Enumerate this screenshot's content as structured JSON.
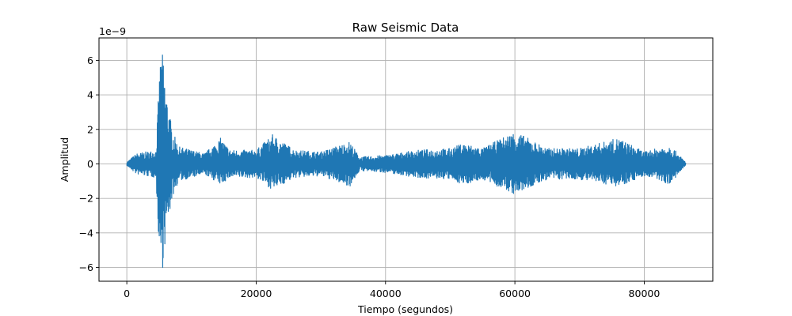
{
  "chart_data": {
    "type": "line",
    "title": "Raw Seismic Data",
    "xlabel": "Tiempo (segundos)",
    "ylabel": "Amplitud",
    "y_scale_label": "1e−9",
    "xlim": [
      -4300,
      90600
    ],
    "ylim": [
      -6.8,
      7.3
    ],
    "x_ticks": [
      0,
      20000,
      40000,
      60000,
      80000
    ],
    "x_tick_labels": [
      "0",
      "20000",
      "40000",
      "60000",
      "80000"
    ],
    "y_ticks": [
      -6,
      -4,
      -2,
      0,
      2,
      4,
      6
    ],
    "y_tick_labels": [
      "−6",
      "−4",
      "−2",
      "0",
      "2",
      "4",
      "6"
    ],
    "grid": true,
    "line_color": "#1f77b4",
    "series": [
      {
        "x": [
          0,
          1500,
          3000,
          4500,
          5000,
          5300,
          5600,
          6000,
          7000,
          8000,
          10000,
          12000,
          14500,
          16000,
          20000,
          22500,
          26000,
          30000,
          34500,
          36000,
          40000,
          45000,
          50000,
          52000,
          55000,
          60000,
          65000,
          70000,
          76000,
          80000,
          82000,
          84000,
          86400
        ],
        "envelope_upper": [
          0.1,
          0.6,
          0.7,
          0.8,
          4.8,
          6.8,
          6.2,
          4.5,
          2.0,
          1.0,
          0.8,
          0.6,
          1.5,
          0.8,
          0.8,
          1.7,
          0.8,
          0.7,
          1.3,
          0.4,
          0.5,
          0.8,
          0.9,
          1.2,
          0.9,
          1.9,
          0.9,
          0.9,
          1.5,
          0.7,
          0.9,
          1.1,
          0.1
        ],
        "envelope_lower": [
          -0.1,
          -0.6,
          -0.7,
          -0.8,
          -5.0,
          -6.1,
          -6.0,
          -4.3,
          -2.0,
          -1.0,
          -0.8,
          -0.6,
          -1.2,
          -0.8,
          -0.8,
          -1.5,
          -0.8,
          -0.7,
          -1.3,
          -0.4,
          -0.5,
          -0.8,
          -0.9,
          -1.2,
          -0.9,
          -1.8,
          -0.9,
          -0.9,
          -1.3,
          -0.7,
          -0.9,
          -1.2,
          -0.1
        ]
      }
    ]
  }
}
